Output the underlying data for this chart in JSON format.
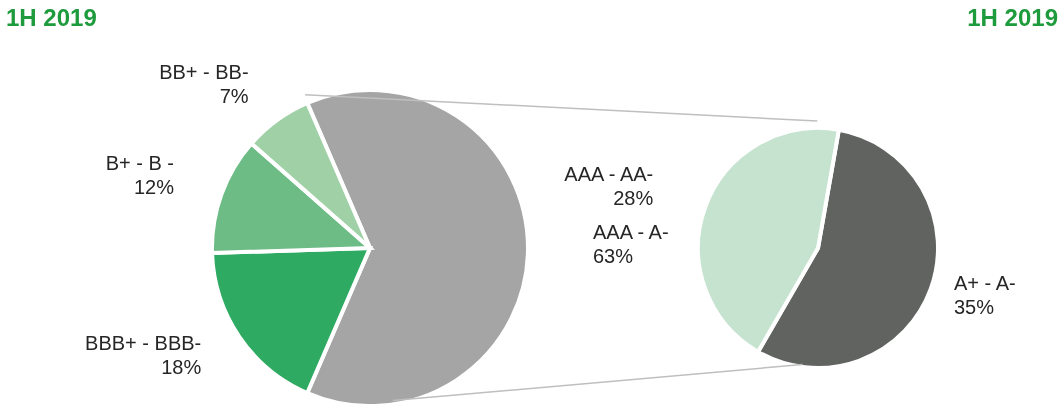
{
  "chart_data": [
    {
      "type": "pie",
      "title": "1H 2019",
      "categories": [
        "AAA - A-",
        "BBB+ - BBB-",
        "B+ - B -",
        "BB+ - BB-"
      ],
      "values": [
        63,
        18,
        12,
        7
      ],
      "value_labels": [
        "63%",
        "18%",
        "12%",
        "7%"
      ],
      "colors": [
        "#a5a5a5",
        "#2eaa62",
        "#6dbb85",
        "#9fd0a6"
      ]
    },
    {
      "type": "pie",
      "title": "1H 2019",
      "categories": [
        "A+ - A-",
        "AAA - AA-"
      ],
      "values": [
        35,
        28
      ],
      "value_labels": [
        "35%",
        "28%"
      ],
      "colors": [
        "#616361",
        "#c5e3cf"
      ]
    }
  ]
}
